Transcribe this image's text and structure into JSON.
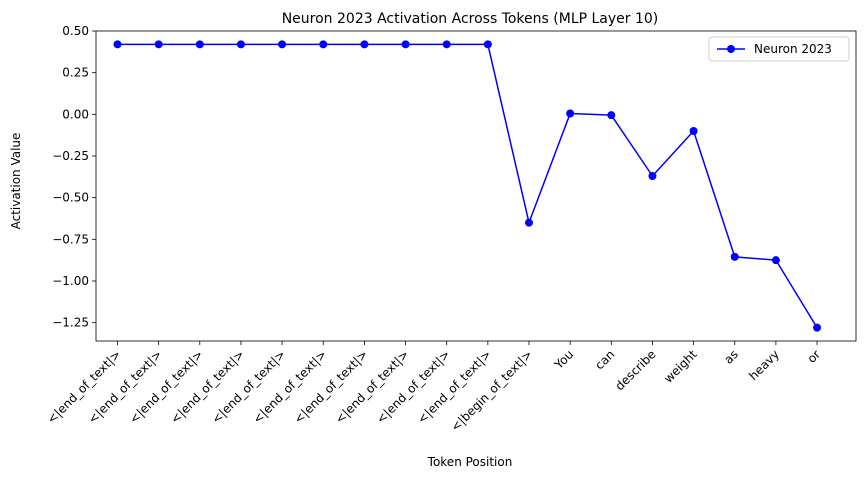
{
  "chart_data": {
    "type": "line",
    "title": "Neuron 2023 Activation Across Tokens (MLP Layer 10)",
    "xlabel": "Token Position",
    "ylabel": "Activation Value",
    "categories": [
      "<|end_of_text|>",
      "<|end_of_text|>",
      "<|end_of_text|>",
      "<|end_of_text|>",
      "<|end_of_text|>",
      "<|end_of_text|>",
      "<|end_of_text|>",
      "<|end_of_text|>",
      "<|end_of_text|>",
      "<|end_of_text|>",
      "<|begin_of_text|>",
      "You",
      "can",
      "describe",
      "weight",
      "as",
      "heavy",
      "or"
    ],
    "series": [
      {
        "name": "Neuron 2023",
        "color": "#0000ff",
        "marker": "circle",
        "values": [
          0.42,
          0.42,
          0.42,
          0.42,
          0.42,
          0.42,
          0.42,
          0.42,
          0.42,
          0.42,
          -0.65,
          0.005,
          -0.005,
          -0.37,
          -0.1,
          -0.855,
          -0.875,
          -1.28
        ]
      }
    ],
    "ylim": [
      -1.36,
      0.5
    ],
    "yticks": [
      0.5,
      0.25,
      0.0,
      -0.25,
      -0.5,
      -0.75,
      -1.0,
      -1.25
    ],
    "ytick_labels": [
      "0.50",
      "0.25",
      "0.00",
      "−0.25",
      "−0.50",
      "−0.75",
      "−1.00",
      "−1.25"
    ],
    "grid": false,
    "legend_position": "top-right"
  }
}
